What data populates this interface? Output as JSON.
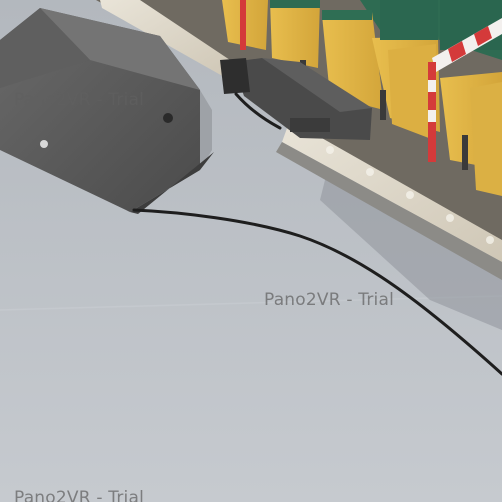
{
  "viewer": {
    "watermarks": [
      "Pano2VR - Trial",
      "Pano2VR - Trial",
      "Pano2VR - Trial"
    ]
  },
  "scene": {
    "objects": [
      "stage-monitor-speaker",
      "audio-cable",
      "cable-connector-box",
      "led-light-strip",
      "stadium-seats",
      "barrier-tape"
    ]
  },
  "colors": {
    "floor": "#bcc1c7",
    "speaker": "#5b5b5b",
    "seat_yellow": "#e0b447",
    "seat_green": "#2e6b52",
    "tape_red": "#d43a3a",
    "cable": "#1e1e1e"
  }
}
